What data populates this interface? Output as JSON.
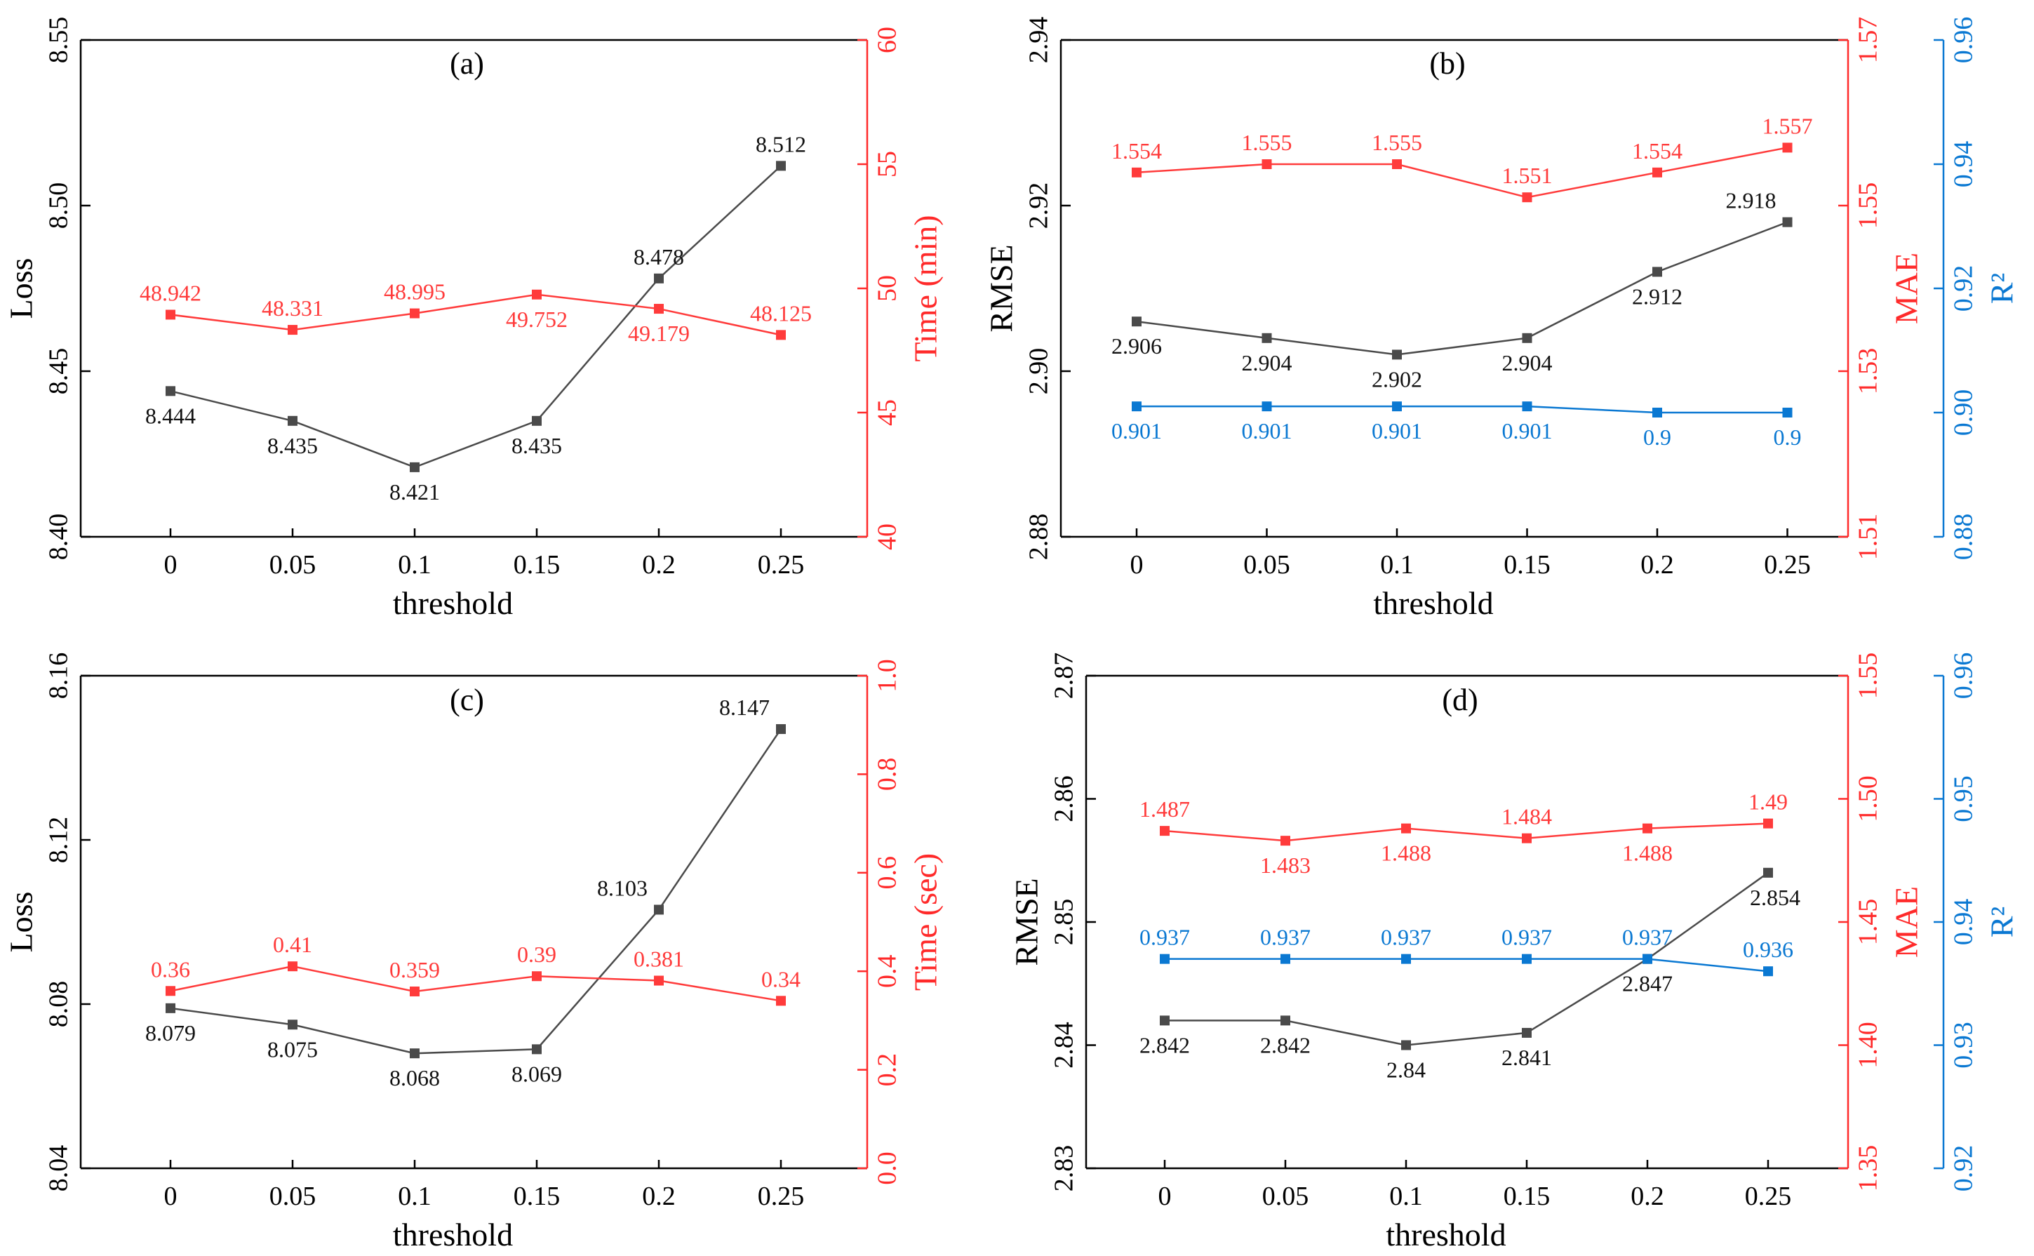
{
  "chart_data": [
    {
      "id": "a",
      "type": "line",
      "panel_label": "(a)",
      "xlabel": "threshold",
      "categories": [
        "0",
        "0.05",
        "0.1",
        "0.15",
        "0.2",
        "0.25"
      ],
      "axes": [
        {
          "label": "Loss",
          "ylim": [
            8.4,
            8.55
          ],
          "ticks": [
            "8.40",
            "8.45",
            "8.50",
            "8.55"
          ],
          "color": "#000000",
          "side": "left"
        },
        {
          "label": "Time (min)",
          "ylim": [
            40,
            60
          ],
          "ticks": [
            "40",
            "45",
            "50",
            "55",
            "60"
          ],
          "color": "#ff2a2a",
          "side": "right"
        }
      ],
      "series": [
        {
          "name": "Loss",
          "axis": 0,
          "color": "#4a4a4a",
          "values": [
            8.444,
            8.435,
            8.421,
            8.435,
            8.478,
            8.512
          ],
          "labels": [
            "8.444",
            "8.435",
            "8.421",
            "8.435",
            "8.478",
            "8.512"
          ],
          "label_pos": [
            "below",
            "below",
            "below",
            "below",
            "above",
            "above"
          ]
        },
        {
          "name": "Time (min)",
          "axis": 1,
          "color": "#ff3b3b",
          "values": [
            48.942,
            48.331,
            48.995,
            49.752,
            49.179,
            48.125
          ],
          "labels": [
            "48.942",
            "48.331",
            "48.995",
            "49.752",
            "49.179",
            "48.125"
          ],
          "label_pos": [
            "above",
            "above",
            "above",
            "below",
            "below",
            "above"
          ]
        }
      ]
    },
    {
      "id": "b",
      "type": "line",
      "panel_label": "(b)",
      "xlabel": "threshold",
      "categories": [
        "0",
        "0.05",
        "0.1",
        "0.15",
        "0.2",
        "0.25"
      ],
      "axes": [
        {
          "label": "RMSE",
          "ylim": [
            2.88,
            2.94
          ],
          "ticks": [
            "2.88",
            "2.90",
            "2.92",
            "2.94"
          ],
          "color": "#000000",
          "side": "left"
        },
        {
          "label": "MAE",
          "ylim": [
            1.51,
            1.57
          ],
          "ticks": [
            "1.51",
            "1.53",
            "1.55",
            "1.57"
          ],
          "color": "#ff2a2a",
          "side": "right"
        },
        {
          "label": "R²",
          "ylim": [
            0.88,
            0.96
          ],
          "ticks": [
            "0.88",
            "0.90",
            "0.92",
            "0.94",
            "0.96"
          ],
          "color": "#0a78d2",
          "side": "right-offset"
        }
      ],
      "series": [
        {
          "name": "RMSE",
          "axis": 0,
          "color": "#4a4a4a",
          "values": [
            2.906,
            2.904,
            2.902,
            2.904,
            2.912,
            2.918
          ],
          "labels": [
            "2.906",
            "2.904",
            "2.902",
            "2.904",
            "2.912",
            "2.918"
          ],
          "label_pos": [
            "below",
            "below",
            "below",
            "below",
            "below",
            "left-above"
          ]
        },
        {
          "name": "MAE",
          "axis": 1,
          "color": "#ff3b3b",
          "values": [
            1.554,
            1.555,
            1.555,
            1.551,
            1.554,
            1.557
          ],
          "labels": [
            "1.554",
            "1.555",
            "1.555",
            "1.551",
            "1.554",
            "1.557"
          ],
          "label_pos": [
            "above",
            "above",
            "above",
            "above",
            "above",
            "above"
          ]
        },
        {
          "name": "R²",
          "axis": 2,
          "color": "#0a78d2",
          "values": [
            0.901,
            0.901,
            0.901,
            0.901,
            0.9,
            0.9
          ],
          "labels": [
            "0.901",
            "0.901",
            "0.901",
            "0.901",
            "0.9",
            "0.9"
          ],
          "label_pos": [
            "below",
            "below",
            "below",
            "below",
            "below",
            "below"
          ]
        }
      ]
    },
    {
      "id": "c",
      "type": "line",
      "panel_label": "(c)",
      "xlabel": "threshold",
      "categories": [
        "0",
        "0.05",
        "0.1",
        "0.15",
        "0.2",
        "0.25"
      ],
      "axes": [
        {
          "label": "Loss",
          "ylim": [
            8.04,
            8.16
          ],
          "ticks": [
            "8.04",
            "8.08",
            "8.12",
            "8.16"
          ],
          "color": "#000000",
          "side": "left"
        },
        {
          "label": "Time (sec)",
          "ylim": [
            0.0,
            1.0
          ],
          "ticks": [
            "0.0",
            "0.2",
            "0.4",
            "0.6",
            "0.8",
            "1.0"
          ],
          "color": "#ff2a2a",
          "side": "right"
        }
      ],
      "series": [
        {
          "name": "Loss",
          "axis": 0,
          "color": "#4a4a4a",
          "values": [
            8.079,
            8.075,
            8.068,
            8.069,
            8.103,
            8.147
          ],
          "labels": [
            "8.079",
            "8.075",
            "8.068",
            "8.069",
            "8.103",
            "8.147"
          ],
          "label_pos": [
            "below",
            "below",
            "below",
            "below",
            "left-above",
            "left-above"
          ]
        },
        {
          "name": "Time (sec)",
          "axis": 1,
          "color": "#ff3b3b",
          "values": [
            0.36,
            0.41,
            0.359,
            0.39,
            0.381,
            0.34
          ],
          "labels": [
            "0.36",
            "0.41",
            "0.359",
            "0.39",
            "0.381",
            "0.34"
          ],
          "label_pos": [
            "above",
            "above",
            "above",
            "above",
            "above",
            "above"
          ]
        }
      ]
    },
    {
      "id": "d",
      "type": "line",
      "panel_label": "(d)",
      "xlabel": "threshold",
      "categories": [
        "0",
        "0.05",
        "0.1",
        "0.15",
        "0.2",
        "0.25"
      ],
      "axes": [
        {
          "label": "RMSE",
          "ylim": [
            2.83,
            2.87
          ],
          "ticks": [
            "2.83",
            "2.84",
            "2.85",
            "2.86",
            "2.87"
          ],
          "color": "#000000",
          "side": "left"
        },
        {
          "label": "MAE",
          "ylim": [
            1.35,
            1.55
          ],
          "ticks": [
            "1.35",
            "1.40",
            "1.45",
            "1.50",
            "1.55"
          ],
          "color": "#ff2a2a",
          "side": "right"
        },
        {
          "label": "R²",
          "ylim": [
            0.92,
            0.96
          ],
          "ticks": [
            "0.92",
            "0.93",
            "0.94",
            "0.95",
            "0.96"
          ],
          "color": "#0a78d2",
          "side": "right-offset"
        }
      ],
      "series": [
        {
          "name": "RMSE",
          "axis": 0,
          "color": "#4a4a4a",
          "values": [
            2.842,
            2.842,
            2.84,
            2.841,
            2.847,
            2.854
          ],
          "labels": [
            "2.842",
            "2.842",
            "2.84",
            "2.841",
            "2.847",
            "2.854"
          ],
          "label_pos": [
            "below",
            "below",
            "below",
            "below",
            "below",
            "below-right"
          ]
        },
        {
          "name": "MAE",
          "axis": 1,
          "color": "#ff3b3b",
          "values": [
            1.487,
            1.483,
            1.488,
            1.484,
            1.488,
            1.49
          ],
          "labels": [
            "1.487",
            "1.483",
            "1.488",
            "1.484",
            "1.488",
            "1.49"
          ],
          "label_pos": [
            "above",
            "below",
            "below",
            "above",
            "below",
            "above"
          ]
        },
        {
          "name": "R²",
          "axis": 2,
          "color": "#0a78d2",
          "values": [
            0.937,
            0.937,
            0.937,
            0.937,
            0.937,
            0.936
          ],
          "labels": [
            "0.937",
            "0.937",
            "0.937",
            "0.937",
            "0.937",
            "0.936"
          ],
          "label_pos": [
            "above",
            "above",
            "above",
            "above",
            "above",
            "above"
          ]
        }
      ]
    }
  ]
}
